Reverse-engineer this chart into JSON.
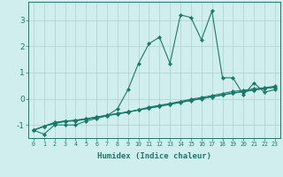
{
  "xlabel": "Humidex (Indice chaleur)",
  "x": [
    0,
    1,
    2,
    3,
    4,
    5,
    6,
    7,
    8,
    9,
    10,
    11,
    12,
    13,
    14,
    15,
    16,
    17,
    18,
    19,
    20,
    21,
    22,
    23
  ],
  "line1": [
    -1.2,
    -1.35,
    -1.0,
    -1.0,
    -1.0,
    -0.85,
    -0.75,
    -0.65,
    -0.38,
    0.35,
    1.35,
    2.1,
    2.35,
    1.35,
    3.2,
    3.1,
    2.25,
    3.35,
    0.8,
    0.8,
    0.15,
    0.6,
    0.25,
    0.35
  ],
  "line2": [
    -1.2,
    -1.05,
    -0.9,
    -0.85,
    -0.85,
    -0.78,
    -0.72,
    -0.65,
    -0.58,
    -0.52,
    -0.42,
    -0.32,
    -0.25,
    -0.18,
    -0.1,
    -0.02,
    0.05,
    0.12,
    0.2,
    0.28,
    0.32,
    0.38,
    0.42,
    0.48
  ],
  "line3": [
    -1.2,
    -1.05,
    -0.93,
    -0.85,
    -0.82,
    -0.76,
    -0.7,
    -0.63,
    -0.57,
    -0.5,
    -0.43,
    -0.36,
    -0.28,
    -0.2,
    -0.13,
    -0.06,
    0.01,
    0.08,
    0.15,
    0.22,
    0.28,
    0.34,
    0.39,
    0.44
  ],
  "line4": [
    -1.2,
    -1.05,
    -0.95,
    -0.87,
    -0.82,
    -0.77,
    -0.7,
    -0.63,
    -0.57,
    -0.5,
    -0.43,
    -0.36,
    -0.29,
    -0.22,
    -0.14,
    -0.07,
    0.0,
    0.07,
    0.14,
    0.21,
    0.27,
    0.33,
    0.39,
    0.44
  ],
  "line_color": "#1a7a6a",
  "bg_color": "#d0eeee",
  "grid_color": "#b0d0d0",
  "ylim": [
    -1.5,
    3.7
  ],
  "yticks": [
    -1,
    0,
    1,
    2,
    3
  ],
  "marker": "D",
  "markersize": 2.2,
  "linewidth": 0.8
}
